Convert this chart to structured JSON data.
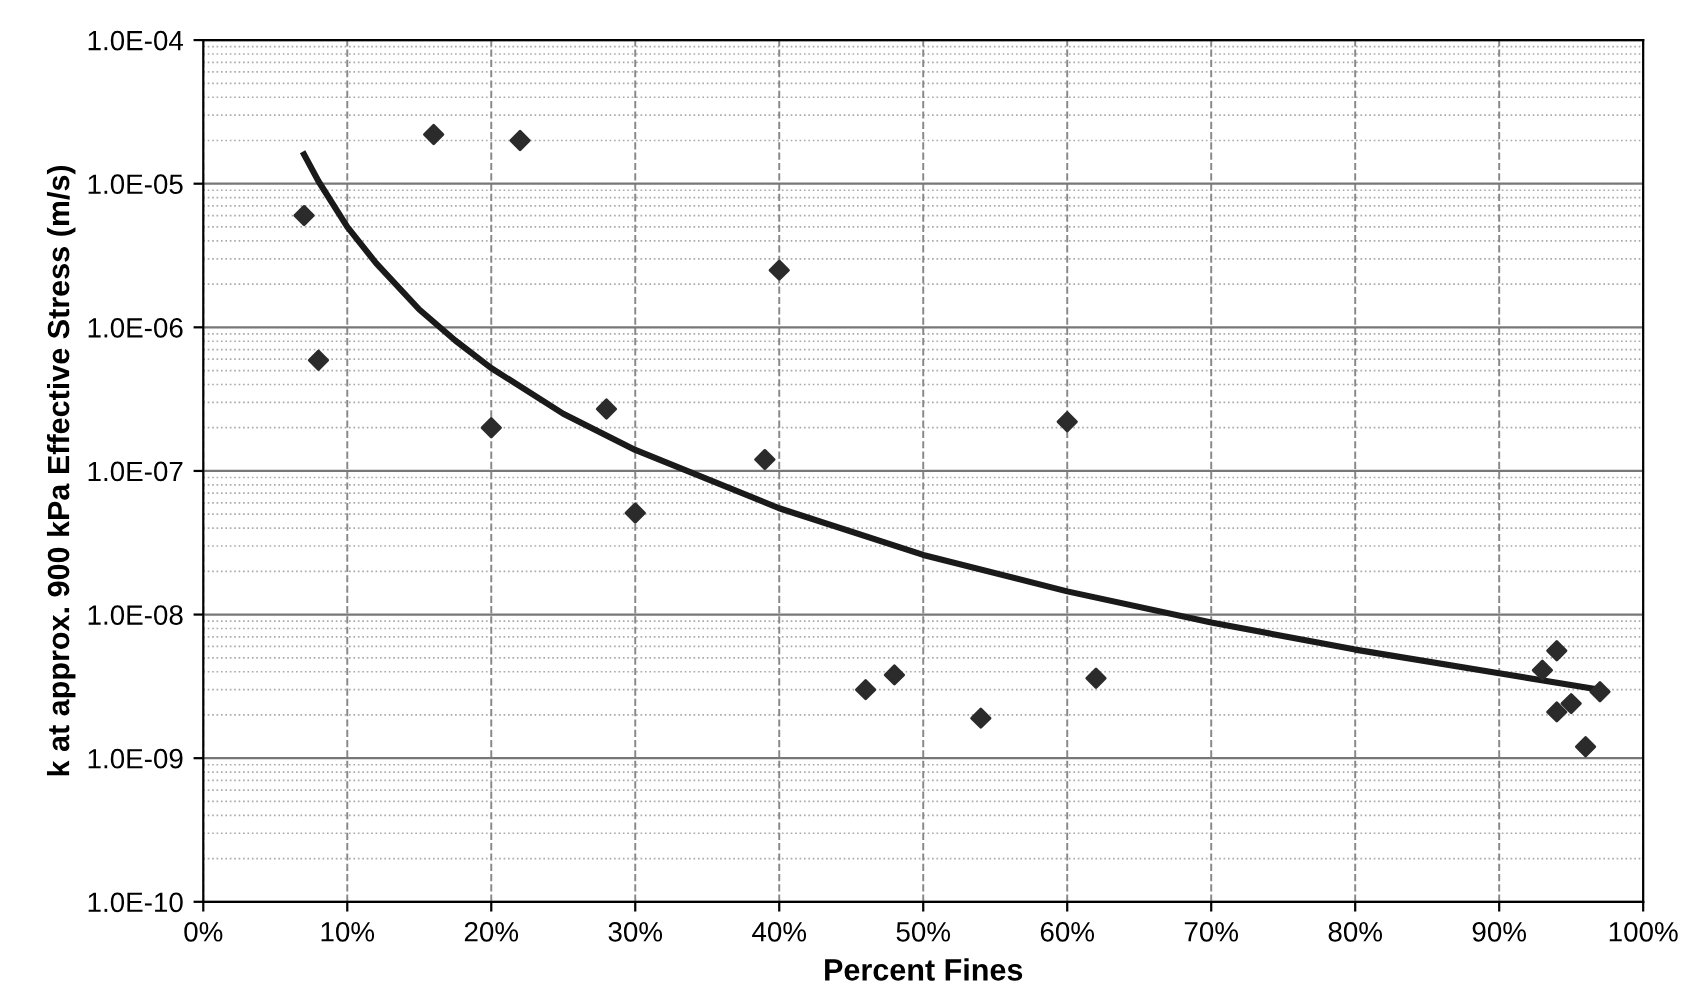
{
  "chart_data": {
    "type": "scatter",
    "xlabel": "Percent Fines",
    "ylabel": "k at approx. 900 kPa Effective Stress (m/s)",
    "log": "y",
    "grid": true,
    "legend": false,
    "xlim": [
      0,
      100
    ],
    "xticks": [
      {
        "value": 0,
        "label": "0%"
      },
      {
        "value": 10,
        "label": "10%"
      },
      {
        "value": 20,
        "label": "20%"
      },
      {
        "value": 30,
        "label": "30%"
      },
      {
        "value": 40,
        "label": "40%"
      },
      {
        "value": 50,
        "label": "50%"
      },
      {
        "value": 60,
        "label": "60%"
      },
      {
        "value": 70,
        "label": "70%"
      },
      {
        "value": 80,
        "label": "80%"
      },
      {
        "value": 90,
        "label": "90%"
      },
      {
        "value": 100,
        "label": "100%"
      }
    ],
    "ylim": [
      1e-10,
      0.0001
    ],
    "yticks": [
      {
        "value": 1e-10,
        "label": "1.0E-10"
      },
      {
        "value": 1e-09,
        "label": "1.0E-09"
      },
      {
        "value": 1e-08,
        "label": "1.0E-08"
      },
      {
        "value": 1e-07,
        "label": "1.0E-07"
      },
      {
        "value": 1e-06,
        "label": "1.0E-06"
      },
      {
        "value": 1e-05,
        "label": "1.0E-05"
      },
      {
        "value": 0.0001,
        "label": "1.0E-04"
      }
    ],
    "series": [
      {
        "marker": "diamond",
        "color": "#2b2b2b",
        "x": [
          7,
          8,
          16,
          22,
          40,
          20,
          28,
          39,
          30,
          46,
          48,
          60,
          54,
          62,
          93,
          94,
          94,
          95,
          96,
          97
        ],
        "values": [
          6e-06,
          5.9e-07,
          2.2e-05,
          2e-05,
          2.5e-06,
          2e-07,
          2.7e-07,
          1.2e-07,
          5.1e-08,
          3e-09,
          3.8e-09,
          2.2e-07,
          1.9e-09,
          3.6e-09,
          4.1e-09,
          5.6e-09,
          2.1e-09,
          2.4e-09,
          1.2e-09,
          2.9e-09
        ]
      },
      {
        "type": "line",
        "marker": "none",
        "line_style": "solid",
        "color": "#1a1a1a",
        "x": [
          7,
          8,
          10,
          12,
          15,
          17.5,
          20,
          25,
          30,
          40,
          50,
          60,
          70,
          80,
          90,
          97
        ],
        "values": [
          1.6e-05,
          1.04e-05,
          5e-06,
          2.8e-06,
          1.33e-06,
          8.1e-07,
          5.2e-07,
          2.5e-07,
          1.4e-07,
          5.5e-08,
          2.6e-08,
          1.45e-08,
          8.8e-09,
          5.7e-09,
          3.9e-09,
          3e-09
        ]
      }
    ]
  }
}
